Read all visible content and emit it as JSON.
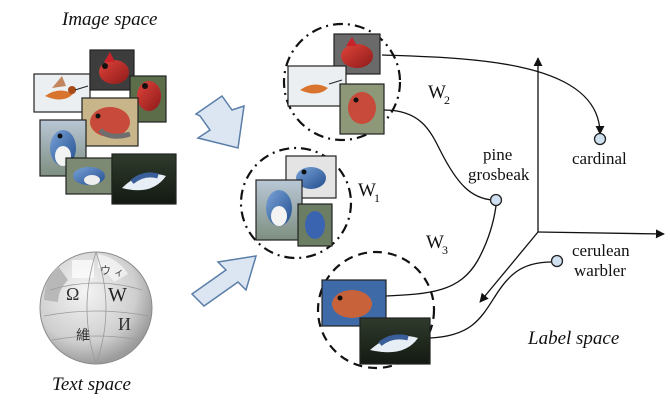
{
  "titles": {
    "image_space": "Image space",
    "text_space": "Text space",
    "label_space": "Label space"
  },
  "weights": {
    "w1": {
      "letter": "W",
      "sub": "1"
    },
    "w2": {
      "letter": "W",
      "sub": "2"
    },
    "w3": {
      "letter": "W",
      "sub": "3"
    }
  },
  "classes": {
    "pine_grosbeak": [
      "pine",
      "grosbeak"
    ],
    "cardinal": [
      "cardinal"
    ],
    "cerulean_warbler": [
      "cerulean",
      "warbler"
    ]
  },
  "wiki_globe": {
    "glyphs": [
      "W",
      "Ω",
      "И",
      "維",
      "ウ",
      "ィ"
    ]
  },
  "colors": {
    "arrow_fill": "#dce6f2",
    "arrow_stroke": "#5a7ea8",
    "dot_fill": "#cfe1f0",
    "cardinal_red": "#c8232b",
    "grosbeak_red": "#c84a3a",
    "warbler_blue": "#4a78b8",
    "hummingbird_orange": "#d8742e",
    "globe_gray": "#d4d4d4"
  }
}
